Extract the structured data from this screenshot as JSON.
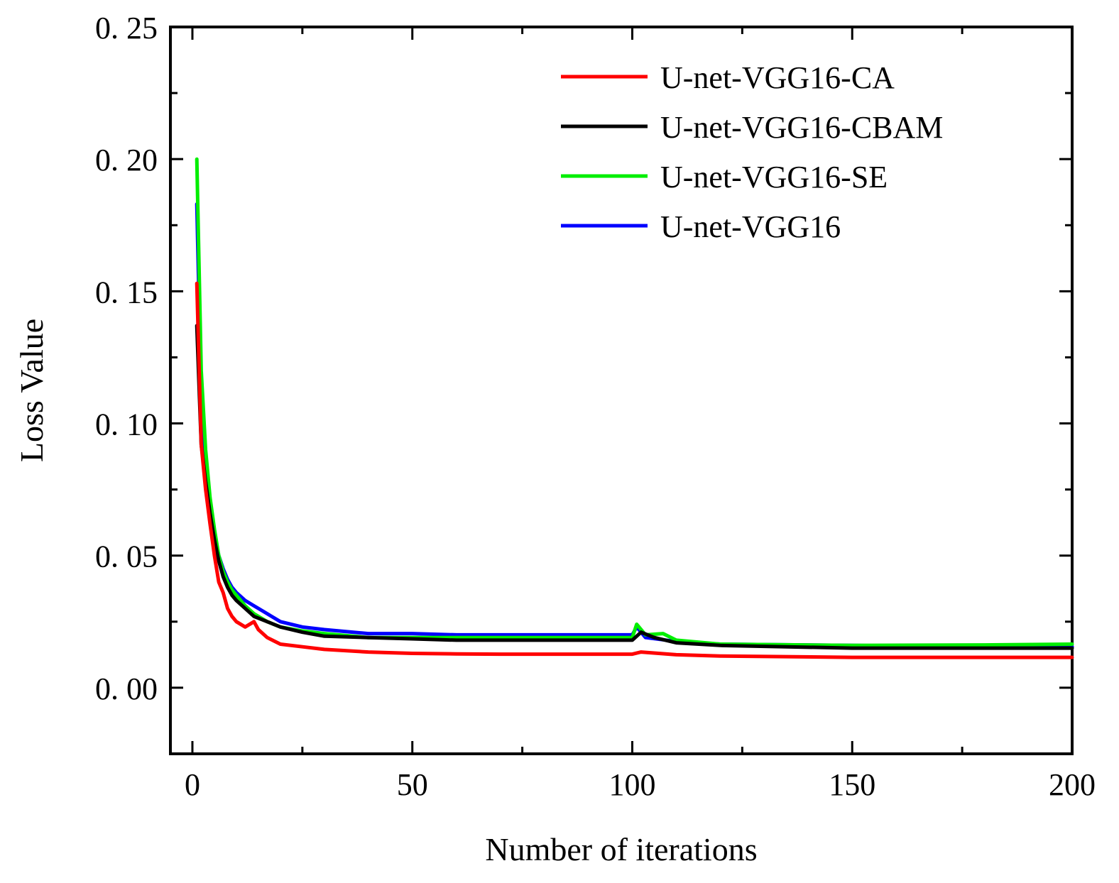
{
  "chart_data": {
    "type": "line",
    "title": "",
    "xlabel": "Number of iterations",
    "ylabel": "Loss Value",
    "xlim": [
      -5,
      200
    ],
    "ylim": [
      -0.025,
      0.25
    ],
    "xticks": [
      "0",
      "50",
      "100",
      "150",
      "200"
    ],
    "xtick_values": [
      0,
      50,
      100,
      150,
      200
    ],
    "yticks": [
      "0. 00",
      "0. 05",
      "0. 10",
      "0. 15",
      "0. 20",
      "0. 25"
    ],
    "ytick_values": [
      0.0,
      0.05,
      0.1,
      0.15,
      0.2,
      0.25
    ],
    "legend_position": "top-right",
    "grid": false,
    "series": [
      {
        "name": "U-net-VGG16-CA",
        "color": "#ff0000",
        "x": [
          1,
          2,
          3,
          4,
          5,
          6,
          7,
          8,
          9,
          10,
          12,
          14,
          15,
          17,
          20,
          25,
          30,
          40,
          50,
          60,
          70,
          80,
          90,
          100,
          102,
          110,
          120,
          150,
          180,
          200
        ],
        "y": [
          0.153,
          0.092,
          0.075,
          0.062,
          0.05,
          0.04,
          0.036,
          0.03,
          0.027,
          0.025,
          0.023,
          0.025,
          0.022,
          0.019,
          0.0165,
          0.0155,
          0.0145,
          0.0135,
          0.013,
          0.0128,
          0.0127,
          0.0127,
          0.0127,
          0.0127,
          0.0135,
          0.0125,
          0.012,
          0.0115,
          0.0115,
          0.0115
        ]
      },
      {
        "name": "U-net-VGG16-CBAM",
        "color": "#000000",
        "x": [
          1,
          2,
          3,
          4,
          5,
          6,
          7,
          8,
          9,
          10,
          12,
          14,
          17,
          20,
          25,
          30,
          40,
          50,
          60,
          70,
          80,
          90,
          100,
          102,
          105,
          110,
          120,
          150,
          180,
          200
        ],
        "y": [
          0.137,
          0.092,
          0.078,
          0.066,
          0.056,
          0.048,
          0.042,
          0.038,
          0.035,
          0.033,
          0.03,
          0.027,
          0.025,
          0.023,
          0.021,
          0.0195,
          0.019,
          0.0185,
          0.018,
          0.018,
          0.018,
          0.018,
          0.018,
          0.021,
          0.019,
          0.017,
          0.016,
          0.015,
          0.015,
          0.015
        ]
      },
      {
        "name": "U-net-VGG16-SE",
        "color": "#00ee00",
        "x": [
          1,
          2,
          3,
          4,
          5,
          6,
          7,
          8,
          9,
          10,
          12,
          14,
          17,
          20,
          25,
          30,
          40,
          50,
          60,
          70,
          80,
          90,
          100,
          101,
          103,
          107,
          110,
          120,
          150,
          180,
          200
        ],
        "y": [
          0.2,
          0.12,
          0.09,
          0.072,
          0.06,
          0.05,
          0.044,
          0.04,
          0.037,
          0.035,
          0.031,
          0.028,
          0.025,
          0.023,
          0.0215,
          0.0205,
          0.019,
          0.019,
          0.019,
          0.019,
          0.019,
          0.019,
          0.019,
          0.024,
          0.02,
          0.0205,
          0.018,
          0.0165,
          0.016,
          0.0162,
          0.0165
        ]
      },
      {
        "name": "U-net-VGG16",
        "color": "#0000ff",
        "x": [
          1,
          2,
          3,
          4,
          5,
          6,
          7,
          8,
          9,
          10,
          12,
          14,
          16,
          18,
          20,
          25,
          30,
          40,
          50,
          60,
          70,
          80,
          90,
          100,
          101,
          103,
          110,
          120,
          150,
          180,
          200
        ],
        "y": [
          0.183,
          0.11,
          0.085,
          0.07,
          0.058,
          0.05,
          0.045,
          0.041,
          0.038,
          0.036,
          0.033,
          0.031,
          0.029,
          0.027,
          0.025,
          0.023,
          0.022,
          0.0205,
          0.0205,
          0.02,
          0.02,
          0.02,
          0.02,
          0.02,
          0.023,
          0.019,
          0.0175,
          0.0165,
          0.016,
          0.0155,
          0.0155
        ]
      }
    ]
  }
}
